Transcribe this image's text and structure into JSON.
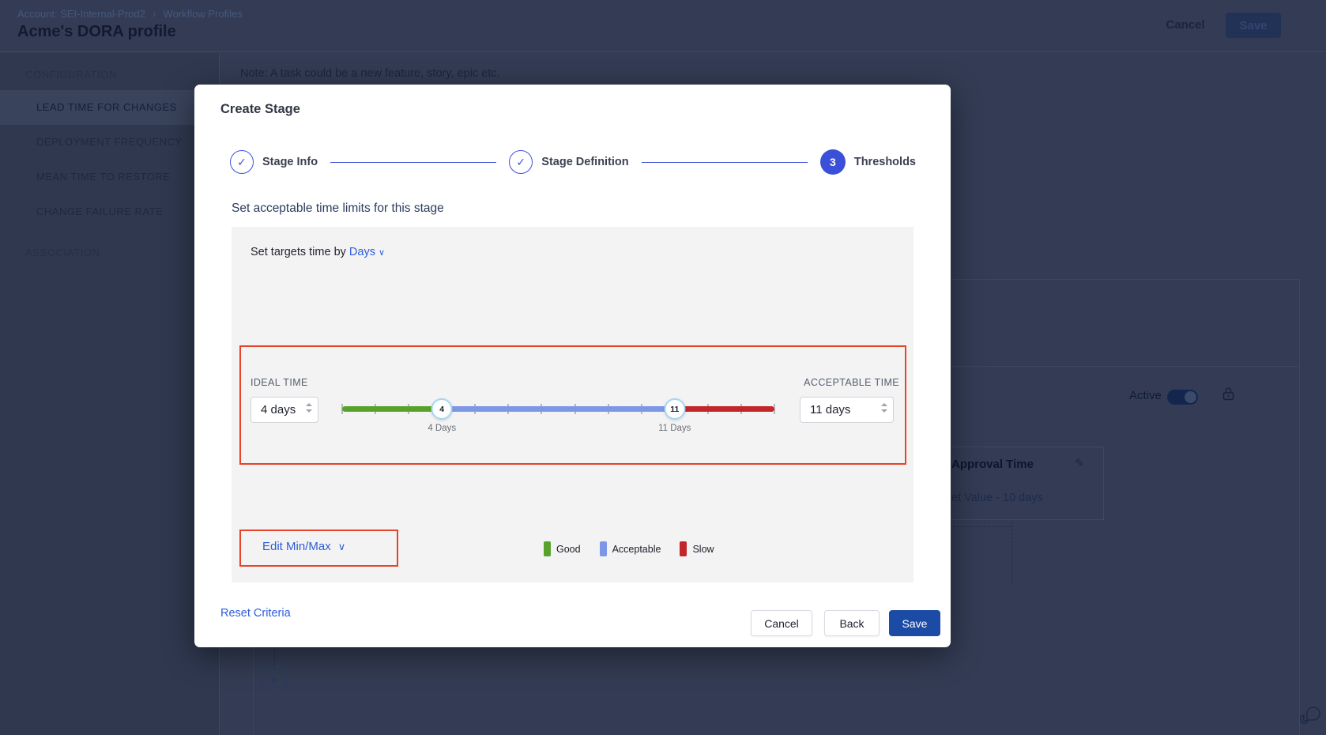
{
  "icons": {
    "check": "✓",
    "chevron_down": "∨",
    "breadcrumb_sep": "›",
    "plus": "+",
    "pencil": "✎"
  },
  "colors": {
    "link_blue": "#2d5dd9",
    "stepper_blue": "#3d51d9",
    "save_blue": "#1c4ba6",
    "annotation_red": "#e64329"
  },
  "page": {
    "breadcrumb": {
      "account": "Account: SEI-Internal-Prod2",
      "section": "Workflow Profiles"
    },
    "title": "Acme's DORA profile",
    "header_actions": {
      "cancel": "Cancel",
      "save": "Save"
    },
    "sidebar": {
      "section": "CONFIGURATION",
      "items": [
        {
          "label": "LEAD TIME FOR CHANGES",
          "selected": true
        },
        {
          "label": "DEPLOYMENT FREQUENCY",
          "selected": false
        },
        {
          "label": "MEAN TIME TO RESTORE",
          "selected": false
        },
        {
          "label": "CHANGE FAILURE RATE",
          "selected": false
        }
      ],
      "association": "ASSOCIATION"
    },
    "note": "Note: A task could be a new feature, story, epic etc.",
    "background_panel": {
      "active_label": "Active",
      "card_title": "Approval Time",
      "card_value": "et Value - 10 days"
    }
  },
  "modal": {
    "title": "Create Stage",
    "steps": [
      {
        "label": "Stage Info",
        "state": "complete"
      },
      {
        "label": "Stage Definition",
        "state": "complete"
      },
      {
        "label": "Thresholds",
        "number": "3",
        "state": "active"
      }
    ],
    "heading": "Set acceptable time limits for this stage",
    "target_by": {
      "prefix": "Set targets time by",
      "unit": "Days"
    },
    "thresholds": {
      "ideal_label": "IDEAL TIME",
      "ideal_value": "4 days",
      "acceptable_label": "ACCEPTABLE TIME",
      "acceptable_value": "11 days"
    },
    "slider": {
      "min": 1,
      "max": 14,
      "lower": 4,
      "upper": 11,
      "lower_label": "4 Days",
      "upper_label": "11 Days",
      "colors": {
        "good": "#57a22a",
        "acceptable": "#7d97e6",
        "slow": "#c2252a"
      }
    },
    "edit_minmax": "Edit Min/Max",
    "legend": [
      {
        "label": "Good",
        "color": "#57a22a"
      },
      {
        "label": "Acceptable",
        "color": "#7d97e6"
      },
      {
        "label": "Slow",
        "color": "#c2252a"
      }
    ],
    "footer": {
      "reset": "Reset Criteria",
      "cancel": "Cancel",
      "back": "Back",
      "save": "Save"
    }
  }
}
